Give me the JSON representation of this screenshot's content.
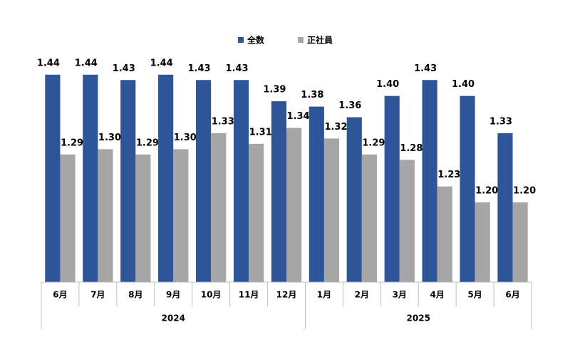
{
  "chart_data": {
    "type": "bar",
    "category_groups": [
      {
        "name": "2024",
        "categories": [
          "6月",
          "7月",
          "8月",
          "9月",
          "10月",
          "11月",
          "12月"
        ]
      },
      {
        "name": "2025",
        "categories": [
          "1月",
          "2月",
          "3月",
          "4月",
          "5月",
          "6月"
        ]
      }
    ],
    "series": [
      {
        "name": "全数",
        "color": "#2e5597",
        "values": [
          1.44,
          1.44,
          1.43,
          1.44,
          1.43,
          1.43,
          1.39,
          1.38,
          1.36,
          1.4,
          1.43,
          1.4,
          1.33
        ],
        "value_labels": [
          "1.44",
          "1.44",
          "1.43",
          "1.44",
          "1.43",
          "1.43",
          "1.39",
          "1.38",
          "1.36",
          "1.40",
          "1.43",
          "1.40",
          "1.33"
        ]
      },
      {
        "name": "正社員",
        "color": "#a6a6a6",
        "values": [
          1.29,
          1.3,
          1.29,
          1.3,
          1.33,
          1.31,
          1.34,
          1.32,
          1.29,
          1.28,
          1.23,
          1.2,
          1.2
        ],
        "value_labels": [
          "1.29",
          "1.30",
          "1.29",
          "1.30",
          "1.33",
          "1.31",
          "1.34",
          "1.32",
          "1.29",
          "1.28",
          "1.23",
          "1.20",
          "1.20"
        ]
      }
    ],
    "ylim": [
      1.05,
      1.5
    ],
    "grid": false,
    "legend": "top"
  }
}
